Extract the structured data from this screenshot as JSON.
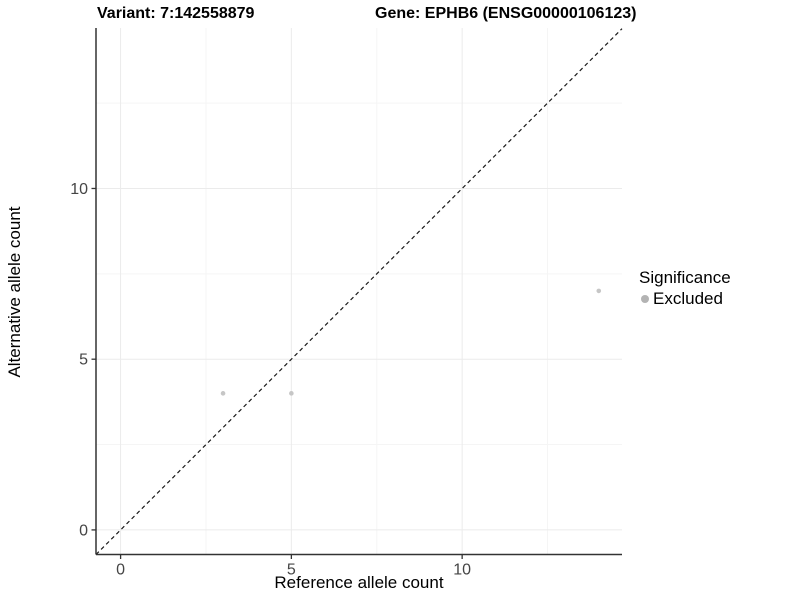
{
  "chart_data": {
    "type": "scatter",
    "titles": {
      "left": "Variant: 7:142558879",
      "right": "Gene: EPHB6 (ENSG00000106123)"
    },
    "xlabel": "Reference allele count",
    "ylabel": "Alternative allele count",
    "xlim": [
      -0.72,
      14.68
    ],
    "ylim": [
      -0.72,
      14.7
    ],
    "x_major_ticks": [
      0,
      5,
      10
    ],
    "y_major_ticks": [
      0,
      5,
      10
    ],
    "x_minor_gridlines": [
      2.5,
      7.5,
      12.5
    ],
    "y_minor_gridlines": [
      2.5,
      7.5,
      12.5
    ],
    "points": [
      {
        "x": 3,
        "y": 4,
        "series": "Excluded"
      },
      {
        "x": 5,
        "y": 4,
        "series": "Excluded"
      },
      {
        "x": 14,
        "y": 7,
        "series": "Excluded"
      }
    ],
    "identity_line": {
      "slope": 1,
      "intercept": 0,
      "style": "dashed"
    },
    "legend": {
      "title": "Significance",
      "position": "right",
      "entries": [
        {
          "label": "Excluded",
          "color": "#b3b3b3"
        }
      ]
    },
    "colors": {
      "point": "#c6c6c6",
      "legend_key": "#b3b3b3",
      "axis_line": "#333333",
      "grid_major": "#ebebeb",
      "grid_minor": "#f5f5f5",
      "tick_label": "#454545",
      "dashed_line": "#1a1a1a",
      "background": "#ffffff"
    },
    "grid": true
  }
}
